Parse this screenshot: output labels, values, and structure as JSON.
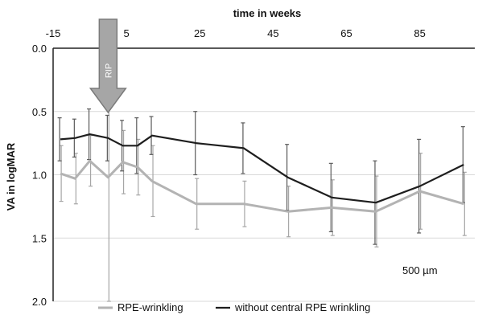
{
  "chart_data": {
    "type": "line",
    "title": "",
    "xlabel": "time in weeks",
    "ylabel": "VA in logMAR",
    "xlim": [
      -15,
      100
    ],
    "ylim": [
      0.0,
      2.0
    ],
    "y_reversed": true,
    "x_axis_position": "top",
    "x_ticks": [
      "-15",
      "5",
      "25",
      "45",
      "65",
      "85"
    ],
    "x_tick_values": [
      -15,
      5,
      25,
      45,
      65,
      85
    ],
    "y_ticks": [
      "0.0",
      "0.5",
      "1.0",
      "1.5",
      "2.0"
    ],
    "y_tick_values": [
      0.0,
      0.5,
      1.0,
      1.5,
      2.0
    ],
    "grid": "horizontal",
    "legend_position": "bottom",
    "annotation": "500 µm",
    "event_marker": {
      "label": "RIP",
      "x": 0
    },
    "series": [
      {
        "name": "RPE-wrinkling",
        "color": "#b3b3b3",
        "x": [
          -13,
          -9,
          -5,
          0,
          4,
          8,
          12,
          24,
          37,
          49,
          61,
          73,
          85,
          97
        ],
        "y": [
          0.99,
          1.03,
          0.89,
          1.02,
          0.9,
          0.94,
          1.05,
          1.23,
          1.23,
          1.29,
          1.26,
          1.29,
          1.13,
          1.23
        ],
        "err": [
          0.22,
          0.2,
          0.2,
          0.98,
          0.25,
          0.22,
          0.28,
          0.2,
          0.18,
          0.2,
          0.22,
          0.28,
          0.3,
          0.25
        ]
      },
      {
        "name": "without central RPE wrinkling",
        "color": "#1e1e1e",
        "x": [
          -13,
          -9,
          -5,
          0,
          4,
          8,
          12,
          24,
          37,
          49,
          61,
          73,
          85,
          97
        ],
        "y": [
          0.72,
          0.71,
          0.68,
          0.71,
          0.77,
          0.77,
          0.69,
          0.75,
          0.79,
          1.02,
          1.18,
          1.22,
          1.09,
          0.92
        ],
        "err": [
          0.17,
          0.15,
          0.2,
          0.18,
          0.2,
          0.22,
          0.15,
          0.25,
          0.2,
          0.26,
          0.27,
          0.33,
          0.37,
          0.3
        ]
      }
    ]
  }
}
